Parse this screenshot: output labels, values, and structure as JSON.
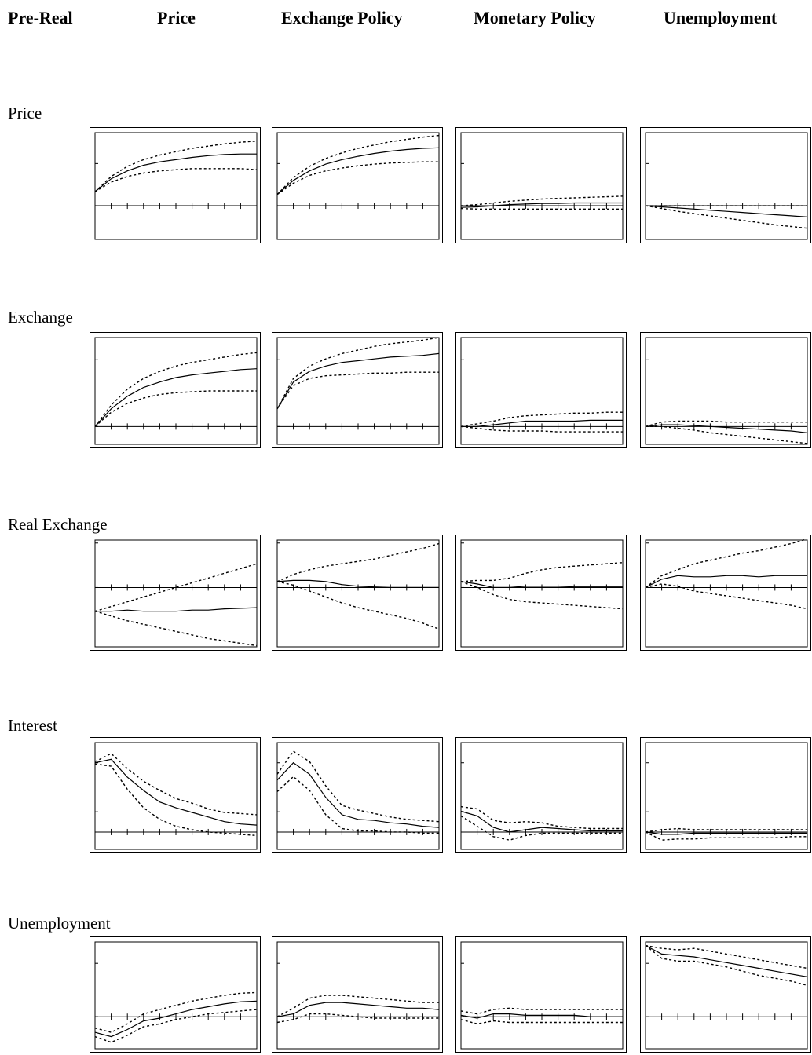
{
  "column_headers": [
    "Pre-Real",
    "Price",
    "Exchange Policy",
    "Monetary Policy",
    "Unemployment"
  ],
  "row_labels": [
    "Price",
    "Exchange",
    "Real Exchange",
    "Interest",
    "Unemployment"
  ],
  "chart_data": {
    "type": "line",
    "description_scope": "5x4 grid of impulse response panels; solid line = response, dashed lines = upper/lower bands; values in relative panel units (no printed tick labels)",
    "x": [
      0,
      1,
      2,
      3,
      4,
      5,
      6,
      7,
      8,
      9,
      10
    ],
    "panels": [
      [
        {
          "mid": [
            0.25,
            0.48,
            0.62,
            0.72,
            0.78,
            0.82,
            0.86,
            0.89,
            0.91,
            0.92,
            0.92
          ],
          "upper": [
            0.25,
            0.52,
            0.7,
            0.82,
            0.9,
            0.96,
            1.02,
            1.06,
            1.1,
            1.13,
            1.15
          ],
          "lower": [
            0.25,
            0.42,
            0.52,
            0.58,
            0.62,
            0.64,
            0.66,
            0.66,
            0.66,
            0.66,
            0.64
          ],
          "ylim": [
            -0.6,
            1.3
          ],
          "ticks": [
            0,
            0.75,
            -0.6
          ]
        },
        {
          "mid": [
            0.2,
            0.45,
            0.62,
            0.74,
            0.82,
            0.88,
            0.93,
            0.97,
            1.0,
            1.02,
            1.03
          ],
          "upper": [
            0.2,
            0.5,
            0.7,
            0.84,
            0.94,
            1.02,
            1.08,
            1.14,
            1.18,
            1.22,
            1.25
          ],
          "lower": [
            0.2,
            0.4,
            0.54,
            0.62,
            0.67,
            0.71,
            0.74,
            0.76,
            0.77,
            0.78,
            0.78
          ],
          "ylim": [
            -0.6,
            1.3
          ],
          "ticks": [
            0,
            0.75,
            -0.6
          ]
        },
        {
          "mid": [
            -0.03,
            -0.02,
            0.0,
            0.02,
            0.03,
            0.04,
            0.04,
            0.05,
            0.05,
            0.05,
            0.05
          ],
          "upper": [
            0.0,
            0.02,
            0.05,
            0.08,
            0.1,
            0.12,
            0.13,
            0.14,
            0.15,
            0.16,
            0.17
          ],
          "lower": [
            -0.05,
            -0.06,
            -0.06,
            -0.06,
            -0.06,
            -0.06,
            -0.06,
            -0.06,
            -0.06,
            -0.06,
            -0.06
          ],
          "ylim": [
            -0.6,
            1.3
          ],
          "ticks": [
            0,
            0.75,
            -0.6
          ]
        },
        {
          "mid": [
            0.0,
            -0.02,
            -0.04,
            -0.06,
            -0.08,
            -0.1,
            -0.12,
            -0.14,
            -0.16,
            -0.18,
            -0.2
          ],
          "upper": [
            0.0,
            0.0,
            0.0,
            0.0,
            0.0,
            0.0,
            0.0,
            0.0,
            0.0,
            0.0,
            0.0
          ],
          "lower": [
            0.0,
            -0.05,
            -0.1,
            -0.14,
            -0.18,
            -0.22,
            -0.26,
            -0.3,
            -0.34,
            -0.37,
            -0.4
          ],
          "ylim": [
            -0.6,
            1.3
          ],
          "ticks": [
            0,
            0.75,
            -0.6
          ]
        }
      ],
      [
        {
          "mid": [
            0.0,
            0.2,
            0.34,
            0.44,
            0.5,
            0.55,
            0.58,
            0.6,
            0.62,
            0.64,
            0.65
          ],
          "upper": [
            0.0,
            0.24,
            0.42,
            0.54,
            0.62,
            0.68,
            0.72,
            0.75,
            0.78,
            0.81,
            0.83
          ],
          "lower": [
            0.0,
            0.16,
            0.26,
            0.32,
            0.36,
            0.38,
            0.39,
            0.4,
            0.4,
            0.4,
            0.4
          ],
          "ylim": [
            -0.2,
            1.0
          ],
          "ticks": [
            0,
            0.75,
            -0.2
          ]
        },
        {
          "mid": [
            0.2,
            0.5,
            0.62,
            0.68,
            0.72,
            0.74,
            0.76,
            0.78,
            0.79,
            0.8,
            0.82
          ],
          "upper": [
            0.2,
            0.54,
            0.68,
            0.76,
            0.82,
            0.86,
            0.9,
            0.93,
            0.95,
            0.97,
            1.0
          ],
          "lower": [
            0.2,
            0.46,
            0.54,
            0.57,
            0.58,
            0.59,
            0.6,
            0.6,
            0.61,
            0.61,
            0.61
          ],
          "ylim": [
            -0.2,
            1.0
          ],
          "ticks": [
            0,
            0.75,
            -0.2
          ]
        },
        {
          "mid": [
            0.0,
            0.0,
            0.02,
            0.04,
            0.06,
            0.06,
            0.06,
            0.06,
            0.07,
            0.07,
            0.07
          ],
          "upper": [
            0.0,
            0.03,
            0.06,
            0.1,
            0.12,
            0.13,
            0.14,
            0.15,
            0.15,
            0.16,
            0.16
          ],
          "lower": [
            0.0,
            -0.02,
            -0.04,
            -0.05,
            -0.05,
            -0.05,
            -0.06,
            -0.06,
            -0.06,
            -0.06,
            -0.06
          ],
          "ylim": [
            -0.2,
            1.0
          ],
          "ticks": [
            0,
            0.75,
            -0.2
          ]
        },
        {
          "mid": [
            0.0,
            0.02,
            0.02,
            0.01,
            0.0,
            -0.01,
            -0.02,
            -0.03,
            -0.04,
            -0.05,
            -0.07
          ],
          "upper": [
            0.0,
            0.05,
            0.06,
            0.06,
            0.06,
            0.05,
            0.05,
            0.05,
            0.05,
            0.05,
            0.05
          ],
          "lower": [
            0.0,
            0.0,
            -0.02,
            -0.04,
            -0.07,
            -0.09,
            -0.11,
            -0.13,
            -0.15,
            -0.17,
            -0.19
          ],
          "ylim": [
            -0.2,
            1.0
          ],
          "ticks": [
            0,
            0.75,
            -0.2
          ]
        }
      ],
      [
        {
          "mid": [
            -0.4,
            -0.4,
            -0.38,
            -0.4,
            -0.4,
            -0.4,
            -0.38,
            -0.38,
            -0.36,
            -0.35,
            -0.34
          ],
          "upper": [
            -0.4,
            -0.32,
            -0.24,
            -0.16,
            -0.08,
            0.0,
            0.08,
            0.16,
            0.24,
            0.32,
            0.4
          ],
          "lower": [
            -0.4,
            -0.48,
            -0.56,
            -0.62,
            -0.68,
            -0.74,
            -0.8,
            -0.86,
            -0.9,
            -0.94,
            -0.98
          ],
          "ylim": [
            -1.0,
            0.8
          ],
          "ticks": [
            0,
            0.75,
            -1.0
          ]
        },
        {
          "mid": [
            0.1,
            0.12,
            0.12,
            0.1,
            0.05,
            0.02,
            0.01,
            0.0,
            0.0,
            0.0,
            0.0
          ],
          "upper": [
            0.1,
            0.22,
            0.3,
            0.36,
            0.4,
            0.44,
            0.48,
            0.54,
            0.6,
            0.66,
            0.74
          ],
          "lower": [
            0.1,
            0.04,
            -0.06,
            -0.16,
            -0.26,
            -0.34,
            -0.4,
            -0.46,
            -0.52,
            -0.6,
            -0.7
          ],
          "ylim": [
            -1.0,
            0.8
          ],
          "ticks": [
            0,
            0.75,
            -1.0
          ]
        },
        {
          "mid": [
            0.1,
            0.06,
            0.0,
            0.0,
            0.02,
            0.02,
            0.02,
            0.01,
            0.01,
            0.01,
            0.01
          ],
          "upper": [
            0.1,
            0.12,
            0.12,
            0.16,
            0.24,
            0.3,
            0.34,
            0.36,
            0.38,
            0.4,
            0.42
          ],
          "lower": [
            0.1,
            0.0,
            -0.12,
            -0.2,
            -0.24,
            -0.26,
            -0.28,
            -0.3,
            -0.32,
            -0.34,
            -0.36
          ],
          "ylim": [
            -1.0,
            0.8
          ],
          "ticks": [
            0,
            0.75,
            -1.0
          ]
        },
        {
          "mid": [
            0.0,
            0.14,
            0.2,
            0.18,
            0.18,
            0.2,
            0.2,
            0.18,
            0.2,
            0.2,
            0.2
          ],
          "upper": [
            0.0,
            0.2,
            0.3,
            0.4,
            0.46,
            0.52,
            0.58,
            0.62,
            0.68,
            0.74,
            0.82
          ],
          "lower": [
            0.0,
            0.06,
            0.02,
            -0.06,
            -0.1,
            -0.14,
            -0.18,
            -0.22,
            -0.26,
            -0.3,
            -0.36
          ],
          "ylim": [
            -1.0,
            0.8
          ],
          "ticks": [
            0,
            0.75,
            -1.0
          ]
        }
      ],
      [
        {
          "mid": [
            1.2,
            1.26,
            0.95,
            0.72,
            0.52,
            0.42,
            0.34,
            0.26,
            0.18,
            0.14,
            0.12
          ],
          "upper": [
            1.22,
            1.36,
            1.1,
            0.88,
            0.72,
            0.58,
            0.5,
            0.4,
            0.34,
            0.32,
            0.3
          ],
          "lower": [
            1.18,
            1.14,
            0.74,
            0.42,
            0.22,
            0.1,
            0.04,
            0.0,
            -0.02,
            -0.04,
            -0.06
          ],
          "ylim": [
            -0.3,
            1.55
          ],
          "ticks": [
            0.35,
            1.2,
            -0.3
          ]
        },
        {
          "mid": [
            0.9,
            1.2,
            1.0,
            0.6,
            0.3,
            0.22,
            0.2,
            0.16,
            0.14,
            0.1,
            0.08
          ],
          "upper": [
            1.0,
            1.4,
            1.22,
            0.8,
            0.46,
            0.38,
            0.32,
            0.26,
            0.22,
            0.2,
            0.18
          ],
          "lower": [
            0.7,
            0.96,
            0.72,
            0.3,
            0.06,
            0.02,
            0.02,
            0.0,
            0.0,
            -0.02,
            -0.02
          ],
          "ylim": [
            -0.3,
            1.55
          ],
          "ticks": [
            0.35,
            1.2,
            -0.3
          ]
        },
        {
          "mid": [
            0.36,
            0.28,
            0.08,
            0.0,
            0.04,
            0.08,
            0.06,
            0.04,
            0.02,
            0.02,
            0.02
          ],
          "upper": [
            0.44,
            0.4,
            0.2,
            0.16,
            0.18,
            0.16,
            0.1,
            0.08,
            0.06,
            0.06,
            0.06
          ],
          "lower": [
            0.28,
            0.1,
            -0.08,
            -0.14,
            -0.06,
            -0.02,
            -0.02,
            -0.02,
            -0.02,
            -0.02,
            -0.02
          ],
          "ylim": [
            -0.3,
            1.55
          ],
          "ticks": [
            0.35,
            1.2,
            -0.3
          ]
        },
        {
          "mid": [
            0.0,
            -0.04,
            -0.04,
            -0.02,
            -0.02,
            -0.02,
            -0.02,
            -0.02,
            -0.02,
            -0.02,
            -0.02
          ],
          "upper": [
            0.0,
            0.04,
            0.06,
            0.04,
            0.04,
            0.04,
            0.04,
            0.04,
            0.04,
            0.04,
            0.04
          ],
          "lower": [
            0.0,
            -0.14,
            -0.12,
            -0.12,
            -0.1,
            -0.1,
            -0.1,
            -0.1,
            -0.1,
            -0.08,
            -0.08
          ],
          "ylim": [
            -0.3,
            1.55
          ],
          "ticks": [
            0.35,
            1.2,
            -0.3
          ]
        }
      ],
      [
        {
          "mid": [
            -0.22,
            -0.28,
            -0.18,
            -0.06,
            -0.02,
            0.04,
            0.1,
            0.14,
            0.18,
            0.21,
            0.22
          ],
          "upper": [
            -0.16,
            -0.22,
            -0.1,
            0.04,
            0.1,
            0.16,
            0.22,
            0.26,
            0.3,
            0.33,
            0.34
          ],
          "lower": [
            -0.28,
            -0.36,
            -0.26,
            -0.14,
            -0.1,
            -0.04,
            0.0,
            0.04,
            0.06,
            0.08,
            0.1
          ],
          "ylim": [
            -0.45,
            1.05
          ],
          "ticks": [
            0,
            0.75,
            -0.45
          ]
        },
        {
          "mid": [
            0.0,
            0.04,
            0.16,
            0.2,
            0.2,
            0.18,
            0.16,
            0.14,
            0.12,
            0.12,
            0.1
          ],
          "upper": [
            0.0,
            0.12,
            0.26,
            0.3,
            0.3,
            0.28,
            0.26,
            0.24,
            0.22,
            0.2,
            0.2
          ],
          "lower": [
            -0.08,
            -0.04,
            0.04,
            0.04,
            0.02,
            0.0,
            -0.02,
            -0.02,
            -0.02,
            -0.02,
            -0.02
          ],
          "ylim": [
            -0.45,
            1.05
          ],
          "ticks": [
            0,
            0.75,
            -0.45
          ]
        },
        {
          "mid": [
            0.02,
            -0.02,
            0.04,
            0.04,
            0.02,
            0.02,
            0.02,
            0.02,
            0.0,
            0.0,
            0.0
          ],
          "upper": [
            0.08,
            0.04,
            0.1,
            0.12,
            0.1,
            0.1,
            0.1,
            0.1,
            0.1,
            0.1,
            0.1
          ],
          "lower": [
            -0.04,
            -0.1,
            -0.06,
            -0.08,
            -0.08,
            -0.08,
            -0.08,
            -0.08,
            -0.08,
            -0.08,
            -0.08
          ],
          "ylim": [
            -0.45,
            1.05
          ],
          "ticks": [
            0,
            0.75,
            -0.45
          ]
        },
        {
          "mid": [
            1.0,
            0.88,
            0.86,
            0.84,
            0.8,
            0.76,
            0.72,
            0.68,
            0.64,
            0.6,
            0.56
          ],
          "upper": [
            1.0,
            0.96,
            0.94,
            0.96,
            0.92,
            0.88,
            0.84,
            0.8,
            0.76,
            0.72,
            0.68
          ],
          "lower": [
            1.0,
            0.82,
            0.78,
            0.78,
            0.74,
            0.7,
            0.64,
            0.58,
            0.54,
            0.5,
            0.44
          ],
          "ylim": [
            -0.45,
            1.05
          ],
          "ticks": [
            0,
            0.75,
            -0.45
          ]
        }
      ]
    ]
  }
}
